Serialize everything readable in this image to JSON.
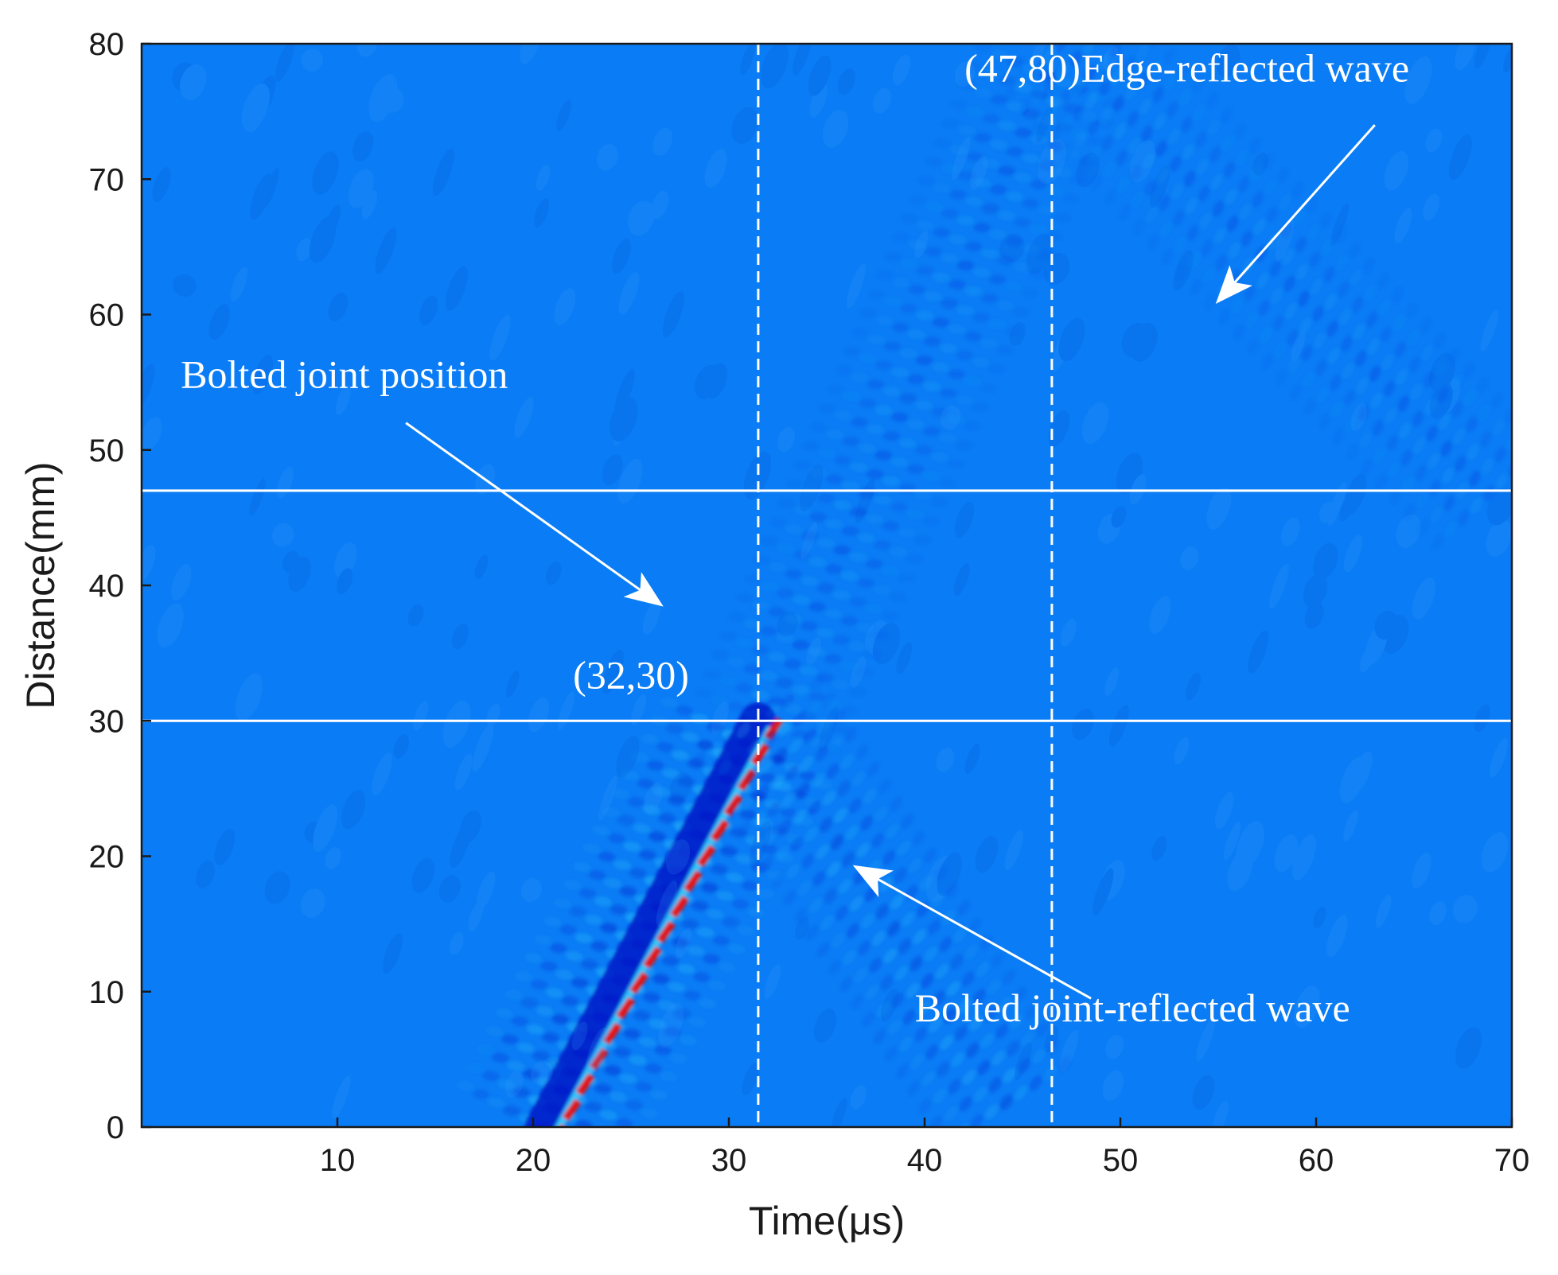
{
  "chart_data": {
    "type": "heatmap",
    "title": "",
    "xlabel": "Time(μs)",
    "ylabel": "Distance(mm)",
    "xlim": [
      0,
      70
    ],
    "ylim": [
      0,
      80
    ],
    "x_ticks": [
      10,
      20,
      30,
      40,
      50,
      60,
      70
    ],
    "y_ticks": [
      0,
      10,
      20,
      30,
      40,
      50,
      60,
      70,
      80
    ],
    "grid": false,
    "legend": "none",
    "colors": {
      "background": "#0a7cf5",
      "ridge_dark": "#0018c8",
      "ridge_light": "#33d6ff",
      "peak": "#e01818",
      "marker_lines": "#ffffff"
    },
    "waves": [
      {
        "name": "incident",
        "t0": 20.5,
        "t1": 31.5,
        "d0": 0,
        "d1": 30,
        "strength": 1.0
      },
      {
        "name": "bolted-joint-reflected",
        "t0": 31.5,
        "t1": 45,
        "d0": 30,
        "d1": 0,
        "strength": 0.55
      },
      {
        "name": "edge-reflected",
        "t0": 32,
        "t1": 47,
        "d0": 30,
        "d1": 80,
        "strength": 0.35
      },
      {
        "name": "edge-return",
        "t0": 47,
        "t1": 70,
        "d0": 80,
        "d1": 45,
        "strength": 0.3
      }
    ],
    "reference_lines": {
      "horizontal_mm": [
        47,
        30
      ],
      "vertical_us": [
        31.5,
        46.5
      ]
    },
    "annotations": [
      {
        "text": "(47,80)",
        "x": 45,
        "y": 77.2,
        "anchor": "middle"
      },
      {
        "text": "Edge-reflected wave",
        "x": 48,
        "y": 77.2,
        "anchor": "start"
      },
      {
        "text": "Bolted joint position",
        "x": 2,
        "y": 54.6,
        "anchor": "start"
      },
      {
        "text": "(32,30)",
        "x": 25,
        "y": 32.4,
        "anchor": "middle"
      },
      {
        "text": "Bolted joint-reflected wave",
        "x": 39.5,
        "y": 7.8,
        "anchor": "start"
      }
    ],
    "arrows": [
      {
        "from": [
          63,
          74
        ],
        "to": [
          55,
          61
        ]
      },
      {
        "from": [
          13.5,
          52
        ],
        "to": [
          26.5,
          38.6
        ]
      },
      {
        "from": [
          48.5,
          9.5
        ],
        "to": [
          36.5,
          19.2
        ]
      }
    ]
  }
}
